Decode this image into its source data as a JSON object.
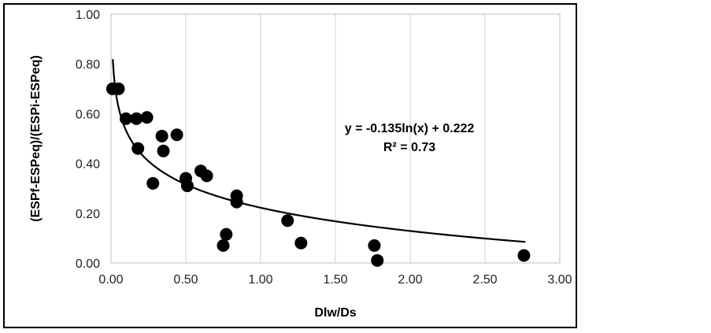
{
  "chart_data": {
    "type": "scatter",
    "title": "",
    "xlabel": "Dlw/Ds",
    "ylabel": "(ESPf-ESPeq)/(ESPi-ESPeq)",
    "xlim": [
      0,
      3
    ],
    "ylim": [
      0,
      1
    ],
    "x_ticks": [
      "0.00",
      "0.50",
      "1.00",
      "1.50",
      "2.00",
      "2.50",
      "3.00"
    ],
    "y_ticks": [
      "0.00",
      "0.20",
      "0.40",
      "0.60",
      "0.80",
      "1.00"
    ],
    "grid": "vertical",
    "marker_color": "#000000",
    "trendline": {
      "type": "logarithmic",
      "a": -0.135,
      "b": 0.222,
      "x_range": [
        0.012,
        2.77
      ],
      "equation_text": "y = -0.135ln(x) + 0.222",
      "r2_text": "R² = 0.73"
    },
    "points": [
      {
        "x": 0.01,
        "y": 0.7
      },
      {
        "x": 0.05,
        "y": 0.7
      },
      {
        "x": 0.1,
        "y": 0.58
      },
      {
        "x": 0.17,
        "y": 0.58
      },
      {
        "x": 0.24,
        "y": 0.585
      },
      {
        "x": 0.18,
        "y": 0.46
      },
      {
        "x": 0.34,
        "y": 0.51
      },
      {
        "x": 0.44,
        "y": 0.515
      },
      {
        "x": 0.35,
        "y": 0.45
      },
      {
        "x": 0.28,
        "y": 0.32
      },
      {
        "x": 0.5,
        "y": 0.34
      },
      {
        "x": 0.51,
        "y": 0.31
      },
      {
        "x": 0.6,
        "y": 0.37
      },
      {
        "x": 0.64,
        "y": 0.35
      },
      {
        "x": 0.84,
        "y": 0.27
      },
      {
        "x": 0.84,
        "y": 0.245
      },
      {
        "x": 0.77,
        "y": 0.115
      },
      {
        "x": 0.75,
        "y": 0.07
      },
      {
        "x": 1.18,
        "y": 0.17
      },
      {
        "x": 1.27,
        "y": 0.08
      },
      {
        "x": 1.76,
        "y": 0.07
      },
      {
        "x": 1.78,
        "y": 0.01
      },
      {
        "x": 2.76,
        "y": 0.03
      }
    ]
  }
}
